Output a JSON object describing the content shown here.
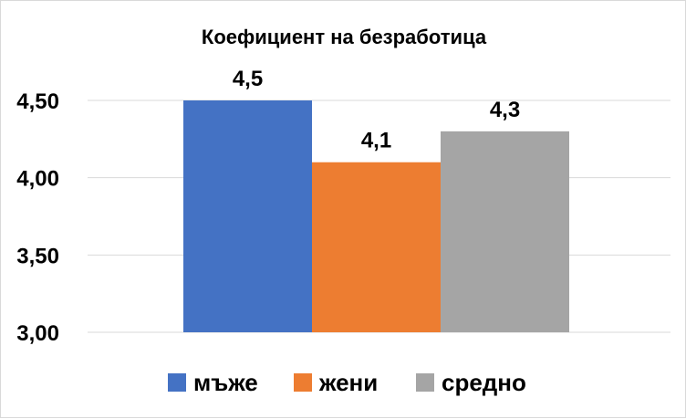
{
  "chart_data": {
    "type": "bar",
    "title": "Коефициент на безработица",
    "categories": [
      ""
    ],
    "series": [
      {
        "name": "мъже",
        "values": [
          4.5
        ],
        "value_label": "4,5",
        "color": "#4472C4"
      },
      {
        "name": "жени",
        "values": [
          4.1
        ],
        "value_label": "4,1",
        "color": "#ED7D31"
      },
      {
        "name": "средно",
        "values": [
          4.3
        ],
        "value_label": "4,3",
        "color": "#A5A5A5"
      }
    ],
    "ylim": [
      3.0,
      4.5
    ],
    "yticks": [
      3.0,
      3.5,
      4.0,
      4.5
    ],
    "ytick_labels": [
      "3,00",
      "3,50",
      "4,00",
      "4,50"
    ],
    "xlabel": "",
    "ylabel": "",
    "grid": true,
    "legend_position": "bottom"
  }
}
